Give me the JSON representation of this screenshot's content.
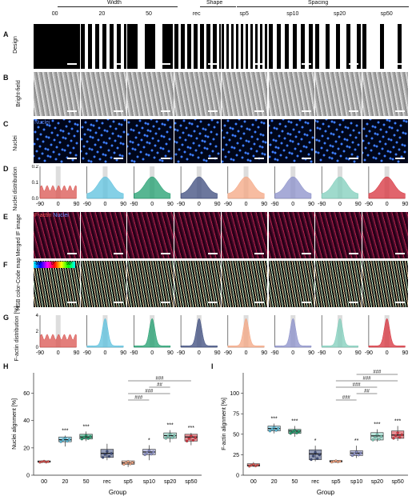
{
  "header": {
    "width_label": "Width",
    "shape_label": "Shape",
    "spacing_label": "Spacing",
    "columns": [
      "00",
      "20",
      "50",
      "rec",
      "sp5",
      "sp10",
      "sp20",
      "sp50"
    ]
  },
  "panels": {
    "A": {
      "letter": "A",
      "row_label": "Design"
    },
    "B": {
      "letter": "B",
      "row_label": "Bright-field"
    },
    "C": {
      "letter": "C",
      "row_label": "Nuclei",
      "overlay": "Nuclei"
    },
    "D": {
      "letter": "D",
      "row_label": "Nuclei distribution"
    },
    "E": {
      "letter": "E",
      "row_label": "Merged IF image",
      "overlay_a": "F-actin",
      "overlay_b": "Nuclei"
    },
    "F": {
      "letter": "F",
      "row_label": "HSB color-Code map",
      "legend": [
        "-90°",
        "0°",
        "90°"
      ]
    },
    "G": {
      "letter": "G",
      "row_label": "F-actin distribution [%]"
    },
    "H": {
      "letter": "H"
    },
    "I": {
      "letter": "I"
    }
  },
  "dist_axes": {
    "D": {
      "yticks": [
        "0.0",
        "0.1",
        "0.2"
      ],
      "xticks": [
        "-90",
        "0",
        "90"
      ]
    },
    "G": {
      "yticks": [
        "0",
        "2",
        "4"
      ],
      "xticks": [
        "-90",
        "0",
        "90"
      ]
    }
  },
  "colors": {
    "00": "#d9534f",
    "20": "#5bc0de",
    "50": "#1f9e6e",
    "rec": "#3b4a7c",
    "sp5": "#f4a582",
    "sp10": "#8a8fc9",
    "sp20": "#7fcdbb",
    "sp50": "#d7303b"
  },
  "chart_data": [
    {
      "type": "box",
      "title": "",
      "xlabel": "Group",
      "ylabel": "Nuclei alignment [%]",
      "ylim": [
        0,
        75
      ],
      "yticks": [
        0,
        20,
        40,
        60
      ],
      "categories": [
        "00",
        "20",
        "50",
        "rec",
        "sp5",
        "sp10",
        "sp20",
        "sp50"
      ],
      "medians": [
        10,
        26,
        28,
        16,
        9,
        17,
        29,
        28
      ],
      "q1": [
        9.5,
        24.5,
        26.5,
        13,
        8,
        15,
        27,
        25
      ],
      "q3": [
        10.5,
        28,
        30,
        19,
        10.5,
        19,
        31,
        30
      ],
      "whisker_low": [
        9,
        21,
        25,
        11,
        6,
        11,
        24,
        22
      ],
      "whisker_high": [
        11,
        29,
        32,
        23,
        11,
        22,
        33,
        31
      ],
      "significance": [
        "",
        "***",
        "***",
        "",
        "",
        "*",
        "***",
        "***"
      ],
      "brackets": [
        {
          "from": "sp5",
          "to": "sp10",
          "label": "###"
        },
        {
          "from": "sp5",
          "to": "sp20",
          "label": "###"
        },
        {
          "from": "sp10",
          "to": "sp20",
          "label": "##"
        },
        {
          "from": "sp5",
          "to": "sp50",
          "label": "###"
        }
      ]
    },
    {
      "type": "box",
      "title": "",
      "xlabel": "Group",
      "ylabel": "F-actin alignment [%]",
      "ylim": [
        0,
        125
      ],
      "yticks": [
        0,
        25,
        50,
        75,
        100
      ],
      "categories": [
        "00",
        "20",
        "50",
        "rec",
        "sp5",
        "sp10",
        "sp20",
        "sp50"
      ],
      "medians": [
        12,
        57,
        54,
        26,
        17,
        27,
        48,
        49
      ],
      "q1": [
        11,
        54,
        51,
        19,
        16,
        24,
        43,
        45
      ],
      "q3": [
        14,
        60,
        56,
        31,
        18,
        30,
        52,
        54
      ],
      "whisker_low": [
        10,
        51,
        47,
        17,
        15,
        21,
        41,
        42
      ],
      "whisker_high": [
        16,
        63,
        60,
        36,
        19,
        36,
        56,
        60
      ],
      "significance": [
        "",
        "***",
        "***",
        "*",
        "",
        "**",
        "***",
        "***"
      ],
      "brackets": [
        {
          "from": "sp5",
          "to": "sp10",
          "label": "###"
        },
        {
          "from": "sp10",
          "to": "sp20",
          "label": "##"
        },
        {
          "from": "sp5",
          "to": "sp20",
          "label": "###"
        },
        {
          "from": "sp5",
          "to": "sp50",
          "label": "###"
        },
        {
          "from": "sp10",
          "to": "sp50",
          "label": "###"
        }
      ]
    }
  ]
}
